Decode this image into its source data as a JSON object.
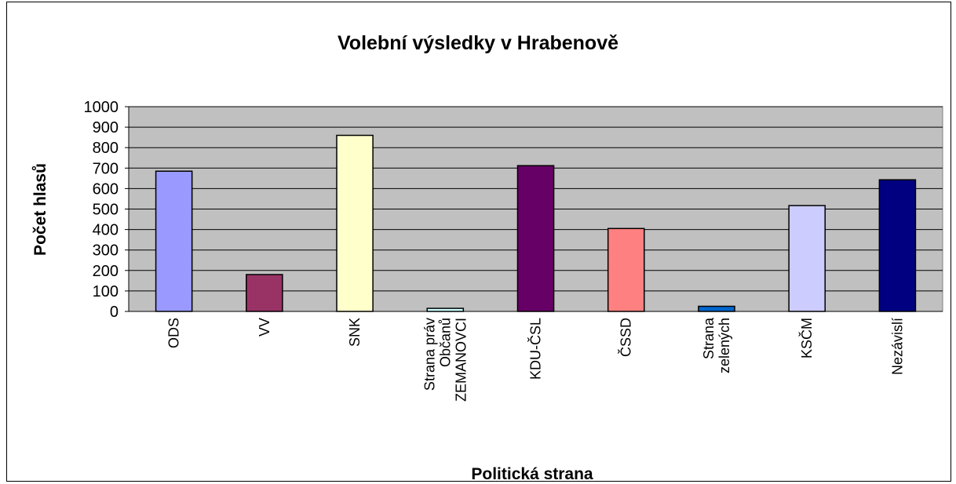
{
  "chart_data": {
    "type": "bar",
    "title": "Volební výsledky v Hrabenově",
    "x_label": "Politická strana",
    "y_label": "Počet hlasů",
    "categories": [
      "ODS",
      "VV",
      "SNK",
      "Strana práv\nObčanů\nZEMANOVCI",
      "KDU-ČSL",
      "ČSSD",
      "Strana\nzelených",
      "KSČM",
      "Nezávislí"
    ],
    "values": [
      685,
      180,
      860,
      15,
      712,
      405,
      25,
      517,
      643
    ],
    "colors": [
      "#9999ff",
      "#993366",
      "#ffffcc",
      "#ccffff",
      "#660066",
      "#ff8080",
      "#0066cc",
      "#ccccff",
      "#000080"
    ],
    "ylim": [
      0,
      1000
    ],
    "yticks": [
      0,
      100,
      200,
      300,
      400,
      500,
      600,
      700,
      800,
      900,
      1000
    ],
    "grid": true
  }
}
